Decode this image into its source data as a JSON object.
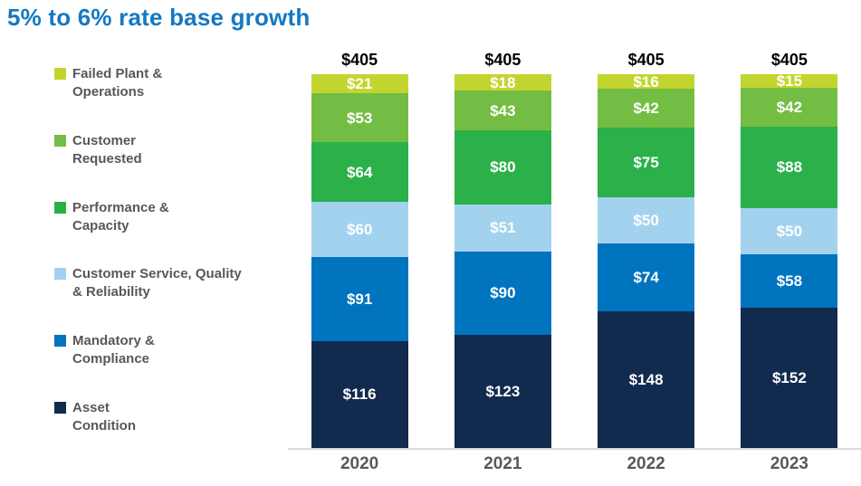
{
  "title": "5% to 6% rate base growth",
  "title_color": "#1478c3",
  "axis_line_color": "#d9d9d9",
  "legend": {
    "position": "left",
    "items": [
      {
        "line1": "Failed Plant &",
        "line2": "Operations",
        "color": "#c2d52e"
      },
      {
        "line1": "Customer",
        "line2": "Requested",
        "color": "#74bd44"
      },
      {
        "line1": "Performance &",
        "line2": "Capacity",
        "color": "#2cb04a"
      },
      {
        "line1": "Customer Service, Quality",
        "line2": "& Reliability",
        "color": "#a3d2ef"
      },
      {
        "line1": "Mandatory &",
        "line2": "Compliance",
        "color": "#0074bf"
      },
      {
        "line1": "Asset",
        "line2": "Condition",
        "color": "#122a4e"
      }
    ]
  },
  "chart_data": {
    "type": "bar",
    "stacked": true,
    "stack_order": "top-to-bottom",
    "title": "5% to 6% rate base growth",
    "categories": [
      "2020",
      "2021",
      "2022",
      "2023"
    ],
    "series": [
      {
        "name": "Failed Plant & Operations",
        "color": "#c2d52e",
        "values": [
          21,
          18,
          16,
          15
        ]
      },
      {
        "name": "Customer Requested",
        "color": "#74bd44",
        "values": [
          53,
          43,
          42,
          42
        ]
      },
      {
        "name": "Performance & Capacity",
        "color": "#2cb04a",
        "values": [
          64,
          80,
          75,
          88
        ]
      },
      {
        "name": "Customer Service, Quality & Reliability",
        "color": "#a3d2ef",
        "values": [
          60,
          51,
          50,
          50
        ]
      },
      {
        "name": "Mandatory & Compliance",
        "color": "#0074bf",
        "values": [
          91,
          90,
          74,
          58
        ]
      },
      {
        "name": "Asset Condition",
        "color": "#122a4e",
        "values": [
          116,
          123,
          148,
          152
        ]
      }
    ],
    "totals": [
      405,
      405,
      405,
      405
    ],
    "value_prefix": "$",
    "xlabel": "",
    "ylabel": "",
    "ylim": [
      0,
      405
    ],
    "grid": false,
    "legend_position": "left",
    "value_label_color": "#ffffff",
    "total_label_color": "#000000"
  }
}
